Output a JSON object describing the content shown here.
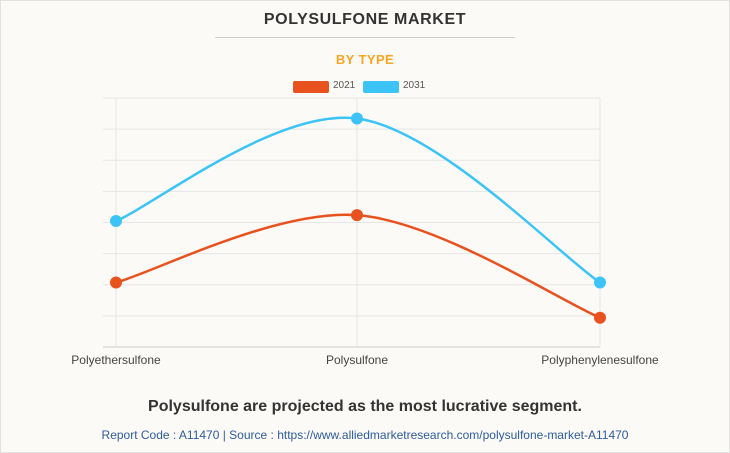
{
  "header": {
    "title": "POLYSULFONE MARKET",
    "subtitle": "BY TYPE"
  },
  "chart_data": {
    "type": "line",
    "categories": [
      "Polyethersulfone",
      "Polysulfone",
      "Polyphenylenesulfone"
    ],
    "series": [
      {
        "name": "2021",
        "color": "#e8521e",
        "values": [
          2.2,
          4.5,
          1.0
        ]
      },
      {
        "name": "2031",
        "color": "#3cc4f7",
        "values": [
          4.3,
          7.8,
          2.2
        ]
      }
    ],
    "ylim": [
      0,
      8.5
    ],
    "grid": true,
    "legend_position": "top-center",
    "title": "",
    "xlabel": "",
    "ylabel": ""
  },
  "footer": {
    "caption": "Polysulfone are projected as the most lucrative segment.",
    "source": "Report Code : A11470  |  Source : https://www.alliedmarketresearch.com/polysulfone-market-A11470"
  }
}
